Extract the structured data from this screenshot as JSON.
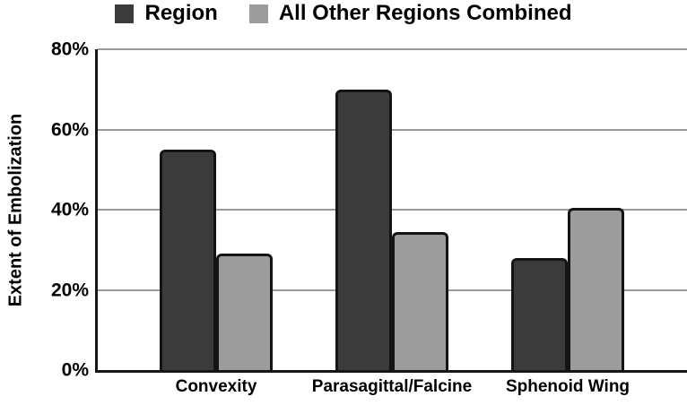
{
  "chart_data": {
    "type": "bar",
    "title": "",
    "xlabel": "",
    "ylabel": "Extent of Embolization",
    "categories": [
      "Convexity",
      "Parasagittal/Falcine",
      "Sphenoid Wing"
    ],
    "series": [
      {
        "name": "Region",
        "key": "region",
        "color": "#3b3b3b",
        "values": [
          55,
          70,
          28
        ]
      },
      {
        "name": "All Other Regions Combined",
        "key": "others",
        "color": "#9c9c9c",
        "values": [
          29,
          34.5,
          40.5
        ]
      }
    ],
    "ylim": [
      0,
      80
    ],
    "yticks": [
      {
        "label": "0%",
        "value": 0
      },
      {
        "label": "20%",
        "value": 20
      },
      {
        "label": "40%",
        "value": 40
      },
      {
        "label": "60%",
        "value": 60
      },
      {
        "label": "80%",
        "value": 80
      }
    ],
    "grid": "horizontal",
    "legend_position": "top-center"
  },
  "colors": {
    "background": "#ffffff",
    "gridline": "#9a9a9a",
    "axis": "#161616",
    "bar_border": "#141414",
    "text": "#000000"
  }
}
